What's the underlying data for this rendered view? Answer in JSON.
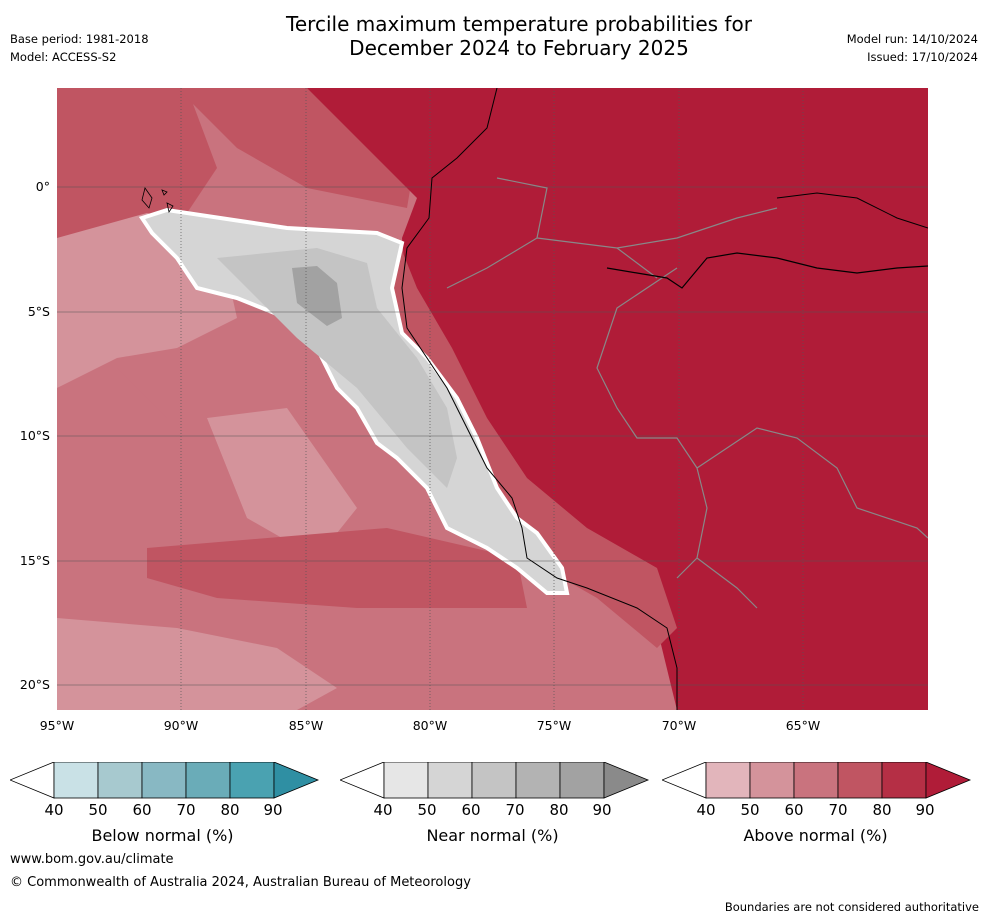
{
  "header": {
    "title_line1": "Tercile maximum temperature probabilities for",
    "title_line2": "December 2024 to February 2025",
    "base_period": "Base period: 1981-2018",
    "model": "Model: ACCESS-S2",
    "model_run": "Model run: 14/10/2024",
    "issued": "Issued: 17/10/2024"
  },
  "map": {
    "lat_labels": [
      "0°",
      "5°S",
      "10°S",
      "15°S",
      "20°S"
    ],
    "lon_labels": [
      "95°W",
      "90°W",
      "85°W",
      "80°W",
      "75°W",
      "70°W",
      "65°W"
    ]
  },
  "legend": {
    "below": {
      "title": "Below normal (%)",
      "ticks": [
        "40",
        "50",
        "60",
        "70",
        "80",
        "90"
      ],
      "colors": [
        "#ffffff",
        "#c9e1e6",
        "#a7c9cf",
        "#88b8c3",
        "#6aacb8",
        "#4aa2b1",
        "#2f8fa3"
      ]
    },
    "near": {
      "title": "Near normal (%)",
      "ticks": [
        "40",
        "50",
        "60",
        "70",
        "80",
        "90"
      ],
      "colors": [
        "#ffffff",
        "#e6e6e6",
        "#d5d5d5",
        "#c4c4c4",
        "#b3b3b3",
        "#a2a2a2",
        "#8a8a8a"
      ]
    },
    "above": {
      "title": "Above normal (%)",
      "ticks": [
        "40",
        "50",
        "60",
        "70",
        "80",
        "90"
      ],
      "colors": [
        "#ffffff",
        "#e2b5bb",
        "#d4939b",
        "#c9737e",
        "#c05562",
        "#b52f45",
        "#b01c38"
      ]
    }
  },
  "footer": {
    "url": "www.bom.gov.au/climate",
    "copyright": "© Commonwealth of Australia 2024, Australian Bureau of Meteorology",
    "disclaimer": "Boundaries are not considered authoritative"
  }
}
